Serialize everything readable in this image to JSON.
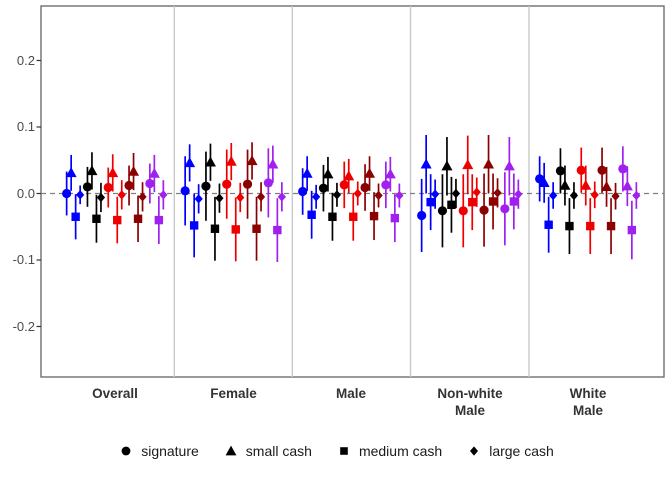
{
  "chart_data": {
    "type": "scatter",
    "subtype": "pointrange-coefficient-plot",
    "title": "",
    "legend_position": "bottom",
    "grid": "off",
    "y_axis": {
      "range": [
        -0.276,
        0.282
      ],
      "ticks": [
        {
          "value": 0.2,
          "label": "0.2"
        },
        {
          "value": 0.1,
          "label": "0.1"
        },
        {
          "value": 0.0,
          "label": "0.0"
        },
        {
          "value": -0.1,
          "label": "-0.1"
        },
        {
          "value": -0.2,
          "label": "-0.2"
        }
      ],
      "zero_reference_line": {
        "value": 0,
        "style": "dashed",
        "color": "#7f7f7f"
      }
    },
    "x_axis": {
      "groups": [
        {
          "label": "Overall"
        },
        {
          "label": "Female"
        },
        {
          "label": "Male"
        },
        {
          "label": "Non-white\nMale"
        },
        {
          "label": "White\nMale"
        }
      ]
    },
    "color_series": [
      {
        "name": "blue",
        "hex": "#0000FF"
      },
      {
        "name": "black",
        "hex": "#000000"
      },
      {
        "name": "red",
        "hex": "#EE0000"
      },
      {
        "name": "dark-red",
        "hex": "#8B0000"
      },
      {
        "name": "purple",
        "hex": "#A020F0"
      }
    ],
    "shape_series": [
      {
        "label": "signature",
        "marker": "circle"
      },
      {
        "label": "small cash",
        "marker": "triangle"
      },
      {
        "label": "medium cash",
        "marker": "square"
      },
      {
        "label": "large cash",
        "marker": "diamond"
      }
    ],
    "values_format": "values[group][color][shape] = [estimate, ci_low, ci_high]",
    "values": [
      [
        [
          [
            0.0,
            -0.033,
            0.033
          ],
          [
            0.031,
            0.004,
            0.058
          ],
          [
            -0.035,
            -0.069,
            -0.001
          ],
          [
            -0.002,
            -0.016,
            0.012
          ]
        ],
        [
          [
            0.01,
            -0.02,
            0.04
          ],
          [
            0.034,
            0.006,
            0.062
          ],
          [
            -0.038,
            -0.074,
            -0.002
          ],
          [
            -0.006,
            -0.028,
            0.016
          ]
        ],
        [
          [
            0.009,
            -0.021,
            0.039
          ],
          [
            0.031,
            0.003,
            0.059
          ],
          [
            -0.04,
            -0.075,
            -0.005
          ],
          [
            -0.002,
            -0.024,
            0.02
          ]
        ],
        [
          [
            0.012,
            -0.018,
            0.042
          ],
          [
            0.033,
            0.005,
            0.061
          ],
          [
            -0.038,
            -0.073,
            -0.003
          ],
          [
            -0.005,
            -0.027,
            0.017
          ]
        ],
        [
          [
            0.015,
            -0.015,
            0.045
          ],
          [
            0.03,
            0.002,
            0.058
          ],
          [
            -0.04,
            -0.076,
            -0.004
          ],
          [
            -0.002,
            -0.024,
            0.02
          ]
        ]
      ],
      [
        [
          [
            0.004,
            -0.048,
            0.056
          ],
          [
            0.046,
            0.018,
            0.074
          ],
          [
            -0.048,
            -0.096,
            0.0
          ],
          [
            -0.008,
            -0.03,
            0.014
          ]
        ],
        [
          [
            0.011,
            -0.041,
            0.063
          ],
          [
            0.047,
            0.019,
            0.075
          ],
          [
            -0.053,
            -0.101,
            -0.005
          ],
          [
            -0.007,
            -0.029,
            0.015
          ]
        ],
        [
          [
            0.014,
            -0.038,
            0.066
          ],
          [
            0.048,
            0.02,
            0.076
          ],
          [
            -0.054,
            -0.102,
            -0.006
          ],
          [
            -0.006,
            -0.028,
            0.016
          ]
        ],
        [
          [
            0.014,
            -0.038,
            0.066
          ],
          [
            0.049,
            0.021,
            0.077
          ],
          [
            -0.053,
            -0.101,
            -0.005
          ],
          [
            -0.005,
            -0.027,
            0.017
          ]
        ],
        [
          [
            0.016,
            -0.036,
            0.068
          ],
          [
            0.044,
            0.016,
            0.072
          ],
          [
            -0.055,
            -0.103,
            -0.007
          ],
          [
            -0.005,
            -0.027,
            0.017
          ]
        ]
      ],
      [
        [
          [
            0.003,
            -0.032,
            0.038
          ],
          [
            0.03,
            0.004,
            0.056
          ],
          [
            -0.032,
            -0.068,
            0.004
          ],
          [
            -0.005,
            -0.023,
            0.013
          ]
        ],
        [
          [
            0.008,
            -0.027,
            0.043
          ],
          [
            0.029,
            0.003,
            0.055
          ],
          [
            -0.035,
            -0.071,
            0.001
          ],
          [
            -0.002,
            -0.02,
            0.016
          ]
        ],
        [
          [
            0.013,
            -0.022,
            0.048
          ],
          [
            0.026,
            0.0,
            0.052
          ],
          [
            -0.035,
            -0.071,
            0.001
          ],
          [
            0.0,
            -0.018,
            0.018
          ]
        ],
        [
          [
            0.009,
            -0.026,
            0.044
          ],
          [
            0.03,
            0.004,
            0.056
          ],
          [
            -0.034,
            -0.07,
            0.002
          ],
          [
            -0.003,
            -0.021,
            0.015
          ]
        ],
        [
          [
            0.013,
            -0.022,
            0.048
          ],
          [
            0.029,
            0.003,
            0.055
          ],
          [
            -0.037,
            -0.073,
            -0.001
          ],
          [
            -0.003,
            -0.021,
            0.015
          ]
        ]
      ],
      [
        [
          [
            -0.033,
            -0.088,
            0.022
          ],
          [
            0.044,
            0.0,
            0.088
          ],
          [
            -0.013,
            -0.055,
            0.029
          ],
          [
            -0.001,
            -0.023,
            0.021
          ]
        ],
        [
          [
            -0.026,
            -0.081,
            0.029
          ],
          [
            0.041,
            -0.003,
            0.085
          ],
          [
            -0.017,
            -0.059,
            0.025
          ],
          [
            0.0,
            -0.022,
            0.022
          ]
        ],
        [
          [
            -0.026,
            -0.081,
            0.029
          ],
          [
            0.043,
            -0.001,
            0.087
          ],
          [
            -0.013,
            -0.055,
            0.029
          ],
          [
            0.002,
            -0.02,
            0.024
          ]
        ],
        [
          [
            -0.025,
            -0.08,
            0.03
          ],
          [
            0.044,
            0.0,
            0.088
          ],
          [
            -0.012,
            -0.054,
            0.03
          ],
          [
            0.001,
            -0.021,
            0.023
          ]
        ],
        [
          [
            -0.023,
            -0.078,
            0.032
          ],
          [
            0.041,
            -0.003,
            0.085
          ],
          [
            -0.012,
            -0.054,
            0.03
          ],
          [
            -0.001,
            -0.023,
            0.021
          ]
        ]
      ],
      [
        [
          [
            0.022,
            -0.012,
            0.056
          ],
          [
            0.016,
            -0.014,
            0.046
          ],
          [
            -0.047,
            -0.089,
            -0.005
          ],
          [
            -0.003,
            -0.023,
            0.017
          ]
        ],
        [
          [
            0.034,
            0.0,
            0.068
          ],
          [
            0.012,
            -0.018,
            0.042
          ],
          [
            -0.049,
            -0.091,
            -0.007
          ],
          [
            -0.003,
            -0.023,
            0.017
          ]
        ],
        [
          [
            0.035,
            0.001,
            0.069
          ],
          [
            0.012,
            -0.018,
            0.042
          ],
          [
            -0.049,
            -0.091,
            -0.007
          ],
          [
            -0.002,
            -0.022,
            0.018
          ]
        ],
        [
          [
            0.035,
            0.001,
            0.069
          ],
          [
            0.01,
            -0.02,
            0.04
          ],
          [
            -0.049,
            -0.091,
            -0.007
          ],
          [
            -0.004,
            -0.024,
            0.016
          ]
        ],
        [
          [
            0.037,
            0.003,
            0.071
          ],
          [
            0.011,
            -0.019,
            0.041
          ],
          [
            -0.055,
            -0.099,
            -0.011
          ],
          [
            -0.003,
            -0.023,
            0.017
          ]
        ]
      ]
    ]
  }
}
